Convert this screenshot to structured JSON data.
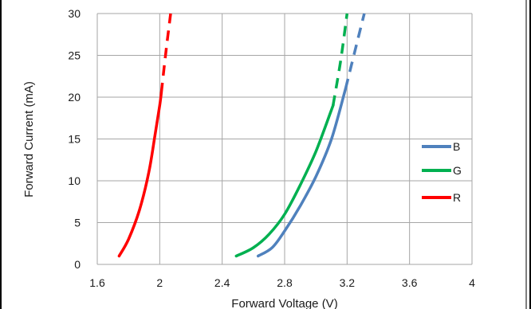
{
  "chart_data": {
    "type": "line",
    "title": "",
    "xlabel": "Forward Voltage (V)",
    "ylabel": "Forward Current (mA)",
    "xlim": [
      1.6,
      4.0
    ],
    "ylim": [
      0,
      30
    ],
    "x_ticks": [
      "1.6",
      "2",
      "2.4",
      "2.8",
      "3.2",
      "3.6",
      "4"
    ],
    "y_ticks": [
      "0",
      "5",
      "10",
      "15",
      "20",
      "25",
      "30"
    ],
    "grid": true,
    "legend_position": "right",
    "series": [
      {
        "name": "B",
        "color": "#4f81bd",
        "solid": [
          [
            2.63,
            1
          ],
          [
            2.72,
            2
          ],
          [
            2.8,
            4
          ],
          [
            2.9,
            7
          ],
          [
            3.0,
            10.5
          ],
          [
            3.1,
            15
          ],
          [
            3.19,
            21
          ]
        ],
        "dashed": [
          [
            3.19,
            21
          ],
          [
            3.25,
            25.5
          ],
          [
            3.31,
            30
          ]
        ]
      },
      {
        "name": "G",
        "color": "#00b050",
        "solid": [
          [
            2.49,
            1
          ],
          [
            2.6,
            2
          ],
          [
            2.7,
            3.6
          ],
          [
            2.8,
            6
          ],
          [
            2.9,
            9.5
          ],
          [
            3.0,
            13.5
          ],
          [
            3.1,
            18.5
          ],
          [
            3.11,
            19
          ]
        ],
        "dashed": [
          [
            3.11,
            19
          ],
          [
            3.16,
            24.5
          ],
          [
            3.2,
            30
          ]
        ]
      },
      {
        "name": "R",
        "color": "#ff0000",
        "solid": [
          [
            1.74,
            1
          ],
          [
            1.8,
            3
          ],
          [
            1.87,
            6.5
          ],
          [
            1.93,
            11
          ],
          [
            1.97,
            15.5
          ],
          [
            2.0,
            19
          ],
          [
            2.01,
            20.5
          ]
        ],
        "dashed": [
          [
            2.01,
            20.5
          ],
          [
            2.04,
            25.5
          ],
          [
            2.07,
            30
          ]
        ]
      }
    ]
  }
}
